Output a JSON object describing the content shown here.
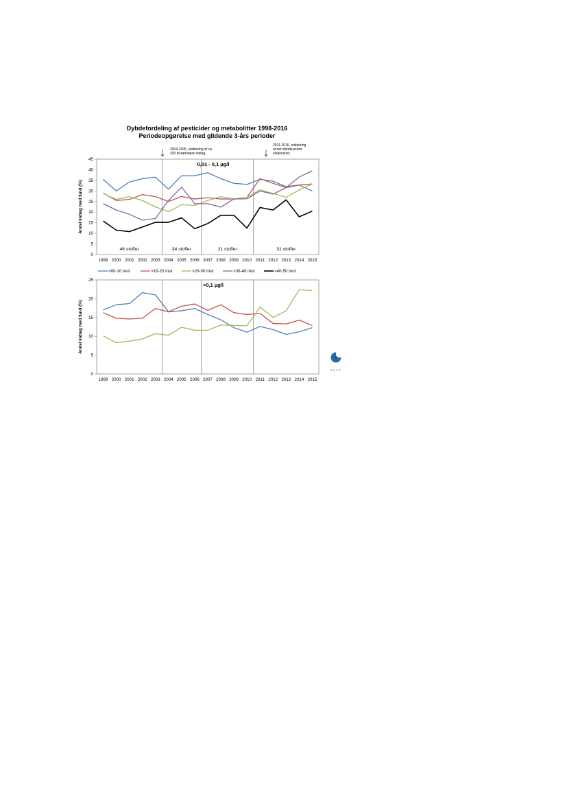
{
  "figure": {
    "title_line1": "Dybdefordeling af pesticider og metabolitter 1998-2016",
    "title_line2": "Periodeopgørelse med glidende 3-års perioder",
    "note_left": [
      "2004-2005, etablering af ca.",
      "330 terrænnære indtag."
    ],
    "note_right": [
      "2011-2016, etablering",
      "af det distribuerede",
      "stationsnet."
    ],
    "logo_text": "GEUS"
  },
  "chart_data": [
    {
      "type": "line",
      "title": "0,01 - 0,1 µg/l",
      "ylabel": "Andel indtag med fund (%)",
      "xlabel": "",
      "ylim": [
        0,
        45
      ],
      "yticks": [
        0,
        5,
        10,
        15,
        20,
        25,
        30,
        35,
        40,
        45
      ],
      "grid": false,
      "x": [
        "1999",
        "2000",
        "2001",
        "2002",
        "2003",
        "2004",
        "2005",
        "2006",
        "2007",
        "2008",
        "2009",
        "2010",
        "2011",
        "2012",
        "2013",
        "2014",
        "2015"
      ],
      "period_dividers_after": [
        "2003",
        "2006",
        "2010"
      ],
      "period_labels": [
        "46 stoffer",
        "34 stoffer",
        "21 stoffer",
        "31 stoffer"
      ],
      "series": [
        {
          "name": ">00-10 mut",
          "color": "#4a7ebb",
          "values": [
            35.5,
            30,
            34.2,
            35.8,
            36.5,
            30.8,
            37.2,
            37.2,
            38.6,
            35.8,
            33.6,
            33.1,
            35.5,
            34.6,
            32,
            32.8,
            30
          ]
        },
        {
          "name": ">10-20 mut",
          "color": "#c0504d",
          "values": [
            29,
            25.5,
            26,
            28.3,
            27.3,
            25,
            27.4,
            26.2,
            26.8,
            26.2,
            26.2,
            27,
            35.8,
            33.6,
            31.6,
            32.8,
            33.3
          ]
        },
        {
          "name": ">20-30 mut",
          "color": "#9bbb59",
          "values": [
            28.8,
            26,
            27.3,
            25.5,
            22.5,
            20.2,
            23.5,
            23.2,
            25.5,
            27.3,
            26.2,
            27,
            30.5,
            28.8,
            27,
            30.5,
            33.3
          ]
        },
        {
          "name": ">30-40 mut",
          "color": "#8064a2",
          "values": [
            24,
            21,
            19,
            16.2,
            17,
            25.5,
            31.8,
            24,
            24,
            22.4,
            26.2,
            26.3,
            30,
            28.5,
            31.6,
            36.6,
            39.5
          ]
        },
        {
          "name": ">40-50 mut",
          "color": "#000000",
          "values": [
            15.8,
            11.5,
            10.8,
            13,
            15.2,
            15.2,
            17.3,
            12.2,
            14.6,
            18.5,
            18.5,
            12.5,
            22.2,
            21,
            25.8,
            17.8,
            20.5
          ]
        }
      ],
      "legend_position": "bottom"
    },
    {
      "type": "line",
      "title": ">0,1 µg/l",
      "ylabel": "Andel indtag med fund (%)",
      "xlabel": "",
      "ylim": [
        0,
        25
      ],
      "yticks": [
        0,
        5,
        10,
        15,
        20,
        25
      ],
      "grid": false,
      "x": [
        "1999",
        "2000",
        "2001",
        "2002",
        "2003",
        "2004",
        "2005",
        "2006",
        "2007",
        "2008",
        "2009",
        "2010",
        "2011",
        "2012",
        "2013",
        "2014",
        "2015"
      ],
      "period_dividers_after": [
        "2003",
        "2006",
        "2010"
      ],
      "series": [
        {
          "name": ">00-10 mut",
          "color": "#4a7ebb",
          "values": [
            17,
            18.4,
            18.7,
            21.6,
            21,
            16.5,
            16.8,
            17.4,
            15.8,
            14.4,
            12.3,
            11.1,
            12.6,
            11.8,
            10.5,
            11.2,
            12.3
          ]
        },
        {
          "name": ">10-20 mut",
          "color": "#c0504d",
          "values": [
            16.3,
            14.8,
            14.6,
            14.8,
            17.4,
            16.5,
            18,
            18.6,
            16.9,
            18.4,
            16.3,
            15.8,
            16.1,
            13.4,
            13.3,
            14.3,
            12.9
          ]
        },
        {
          "name": ">20-30 mut",
          "color": "#9bbb59",
          "values": [
            10.1,
            8.3,
            8.7,
            9.3,
            10.7,
            10.3,
            12.4,
            11.6,
            11.6,
            13,
            12.9,
            12.8,
            17.8,
            15,
            16.8,
            22.4,
            22.2
          ]
        }
      ]
    }
  ]
}
